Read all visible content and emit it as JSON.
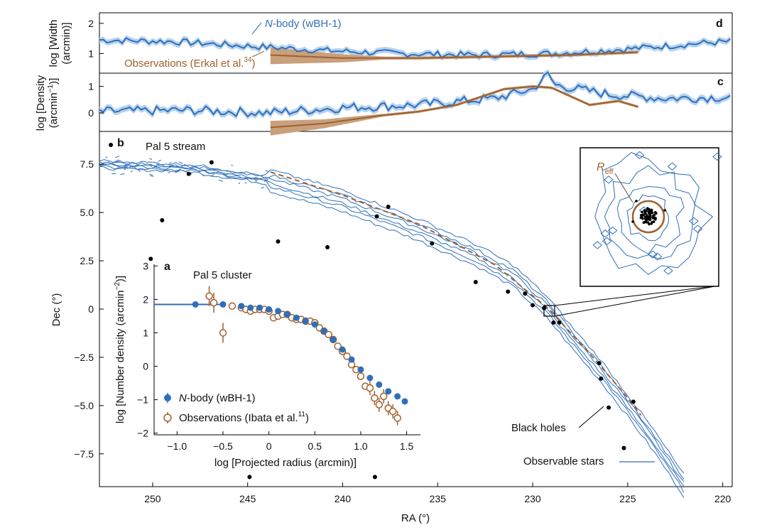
{
  "chart_data": [
    {
      "panel": "d",
      "type": "line",
      "ylabel_line1": "log [Width",
      "ylabel_line2": "(arcmin)]",
      "yticks": [
        "2",
        "1"
      ],
      "ylim": [
        0.35,
        2.35
      ],
      "xlim": [
        252.8,
        219.5
      ],
      "series": [
        {
          "name": "N-body (wBH-1)",
          "label_prefix": "N",
          "label_suffix": "-body (wBH-1)",
          "color": "#2f6fba",
          "x": [
            252.8,
            249,
            245,
            241,
            237,
            233,
            229,
            225,
            221,
            219.5
          ],
          "y": [
            1.45,
            1.4,
            1.25,
            1.1,
            1.0,
            0.95,
            1.0,
            1.15,
            1.35,
            1.4
          ]
        },
        {
          "name": "Observations (Erkal et al.34)",
          "label_main": "Observations (Erkal et al.",
          "label_sup": "34",
          "label_close": ")",
          "color": "#a0602e",
          "x": [
            243.8,
            240,
            236,
            232,
            228,
            224.3
          ],
          "y": [
            0.95,
            0.85,
            0.85,
            0.9,
            0.95,
            1.05
          ]
        }
      ]
    },
    {
      "panel": "c",
      "type": "line",
      "ylabel_line1": "log [Density",
      "ylabel_line2": "(arcmin",
      "ylabel_sup": "−1",
      "ylabel_close": ")]",
      "yticks": [
        "1",
        "0"
      ],
      "ylim": [
        -0.7,
        1.5
      ],
      "xlim": [
        252.8,
        219.5
      ],
      "series": [
        {
          "name": "N-body (wBH-1)",
          "color": "#2f6fba",
          "x": [
            252.8,
            248,
            244,
            240,
            236,
            232,
            230,
            229.2,
            228.8,
            226,
            223,
            219.5
          ],
          "y": [
            0.05,
            0.1,
            0.0,
            0.2,
            0.3,
            0.55,
            0.9,
            1.45,
            1.05,
            0.7,
            0.55,
            0.6
          ]
        },
        {
          "name": "Observations (Erkal et al.34)",
          "color": "#a0602e",
          "x": [
            243.8,
            241,
            238,
            236,
            234,
            231.5,
            230,
            229,
            227,
            225.5,
            224.3
          ],
          "y": [
            -0.55,
            -0.4,
            -0.1,
            0.05,
            0.3,
            0.9,
            1.0,
            0.95,
            0.3,
            0.45,
            0.2
          ]
        }
      ]
    },
    {
      "panel": "b",
      "type": "scatter",
      "title": "Pal 5 stream",
      "xlabel": "RA (°)",
      "ylabel": "Dec (°)",
      "xlim": [
        252.8,
        219.5
      ],
      "ylim": [
        -9.2,
        9.2
      ],
      "xticks": [
        250,
        245,
        240,
        235,
        230,
        225,
        220
      ],
      "yticks": [
        7.5,
        5.0,
        2.5,
        0,
        -2.5,
        -5.0,
        -7.5
      ],
      "ytick_labels": [
        "7.5",
        "5.0",
        "2.5",
        "0",
        "−2.5",
        "−5.0",
        "−7.5"
      ],
      "stream_track": {
        "x": [
          252.8,
          248,
          244,
          240,
          236,
          233,
          231,
          229.2,
          228,
          226.5,
          225,
          223.5,
          222
        ],
        "y": [
          7.5,
          7.3,
          6.7,
          5.6,
          4.1,
          2.8,
          1.7,
          0.05,
          -1.4,
          -3.1,
          -5.0,
          -7.0,
          -9.2
        ]
      },
      "observed_track": {
        "x": [
          243.8,
          240,
          236,
          232,
          229.2,
          227,
          225,
          224.3
        ],
        "y": [
          7.1,
          5.9,
          4.4,
          2.3,
          0.05,
          -2.3,
          -4.6,
          -5.5
        ]
      },
      "black_holes": {
        "x": [
          252.2,
          249.5,
          248.1,
          246.9,
          243.4,
          240.8,
          238.2,
          237.6,
          235.3,
          233.0,
          231.3,
          230.4,
          230.0,
          229.4,
          228.9,
          228.6,
          226.5,
          226.4,
          226.0,
          224.7,
          225.2,
          244.9,
          238.3,
          250.1
        ],
        "y": [
          8.5,
          4.6,
          7.0,
          7.6,
          3.5,
          3.2,
          4.8,
          5.3,
          3.4,
          1.4,
          0.9,
          0.8,
          0.2,
          0.05,
          -0.7,
          -0.7,
          -2.8,
          -3.6,
          -5.1,
          -4.8,
          -7.2,
          -8.7,
          -8.7,
          2.6
        ]
      },
      "annotations": [
        "Black holes",
        "Observable stars"
      ]
    },
    {
      "panel": "a",
      "type": "scatter",
      "title": "Pal 5 cluster",
      "xlabel": "log [Projected radius (arcmin)]",
      "ylabel_main": "log [Number density (arcmin",
      "ylabel_sup": "−2",
      "ylabel_close": ")]",
      "xlim": [
        -1.25,
        1.65
      ],
      "ylim": [
        -2.05,
        3.05
      ],
      "xticks": [
        -1.0,
        -0.5,
        0,
        0.5,
        1.0,
        1.5
      ],
      "xtick_labels": [
        "−1.0",
        "−0.5",
        "0",
        "0.5",
        "1.0",
        "1.5"
      ],
      "yticks": [
        3,
        2,
        1,
        0,
        -1,
        -2
      ],
      "ytick_labels": [
        "3",
        "2",
        "1",
        "0",
        "−1",
        "−2"
      ],
      "series": [
        {
          "name": "N-body (wBH-1)",
          "label_prefix": "N",
          "label_suffix": "-body (wBH-1)",
          "color": "#2f6fba",
          "x": [
            -0.8,
            -0.5,
            -0.3,
            -0.2,
            -0.1,
            0.0,
            0.1,
            0.2,
            0.3,
            0.4,
            0.5,
            0.6,
            0.7,
            0.8,
            0.9,
            1.0,
            1.1,
            1.2,
            1.3,
            1.4,
            1.48
          ],
          "y": [
            1.85,
            1.85,
            1.8,
            1.75,
            1.75,
            1.7,
            1.65,
            1.55,
            1.45,
            1.35,
            1.25,
            1.05,
            0.8,
            0.5,
            0.2,
            -0.1,
            -0.35,
            -0.55,
            -0.75,
            -0.9,
            -1.05
          ]
        },
        {
          "name": "Observations (Ibata et al.11)",
          "label_main": "Observations (Ibata et al.",
          "label_sup": "11",
          "label_close": ")",
          "color": "#a0602e",
          "x": [
            -0.65,
            -0.6,
            -0.5,
            -0.4,
            -0.3,
            -0.25,
            -0.2,
            -0.15,
            -0.1,
            -0.05,
            0.0,
            0.05,
            0.1,
            0.15,
            0.2,
            0.25,
            0.3,
            0.35,
            0.4,
            0.45,
            0.5,
            0.55,
            0.6,
            0.65,
            0.7,
            0.75,
            0.8,
            0.85,
            0.9,
            0.95,
            1.0,
            1.05,
            1.1,
            1.15,
            1.2,
            1.25,
            1.3,
            1.35,
            1.4
          ],
          "y": [
            2.1,
            1.9,
            1.0,
            1.8,
            1.75,
            1.7,
            1.65,
            1.7,
            1.7,
            1.7,
            1.65,
            1.45,
            1.5,
            1.55,
            1.55,
            1.45,
            1.4,
            1.4,
            1.35,
            1.35,
            1.3,
            1.15,
            1.05,
            0.95,
            0.8,
            0.6,
            0.45,
            0.3,
            0.05,
            -0.1,
            -0.3,
            -0.6,
            -0.65,
            -0.95,
            -1.15,
            -0.9,
            -1.25,
            -1.35,
            -1.55
          ]
        }
      ]
    }
  ],
  "inset_b": {
    "label": "R",
    "label_sub": "eff"
  },
  "panel_letters": {
    "a": "a",
    "b": "b",
    "c": "c",
    "d": "d"
  },
  "colors": {
    "nbody": "#2f6fba",
    "obs": "#a0602e",
    "band_nbody": "#b8d3ef",
    "band_obs": "#c9a07c",
    "bh": "#000000"
  }
}
